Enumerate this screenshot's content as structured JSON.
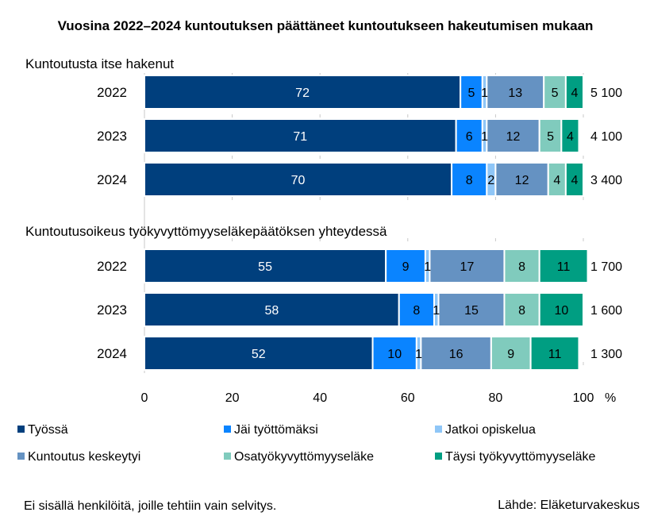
{
  "chart_data": {
    "type": "bar",
    "orientation": "horizontal",
    "stacked": true,
    "title": "Vuosina 2022–2024 kuntoutuksen päättäneet kuntoutukseen hakeutumisen mukaan",
    "xlabel": "%",
    "ylabel": "",
    "xlim": [
      0,
      100
    ],
    "x_ticks": [
      "0",
      "20",
      "40",
      "60",
      "80",
      "100"
    ],
    "x_unit": "%",
    "grid": "vertical dashed",
    "legend_position": "bottom",
    "series_names": [
      "Työssä",
      "Jäi työttömäksi",
      "Jatkoi opiskelua",
      "Kuntoutus keskeytyi",
      "Osatyökyvyttömyyseläke",
      "Täysi työkyvyttömyyseläke"
    ],
    "colors": [
      "#003f7d",
      "#0a84ff",
      "#8fc6f7",
      "#6592c2",
      "#80cbbd",
      "#009e82"
    ],
    "groups": [
      {
        "label": "Kuntoutusta itse hakenut",
        "categories": [
          "2022",
          "2023",
          "2024"
        ],
        "series": [
          {
            "name": "Työssä",
            "values": [
              72,
              71,
              70
            ]
          },
          {
            "name": "Jäi työttömäksi",
            "values": [
              5,
              6,
              8
            ]
          },
          {
            "name": "Jatkoi opiskelua",
            "values": [
              1,
              1,
              2
            ]
          },
          {
            "name": "Kuntoutus keskeytyi",
            "values": [
              13,
              12,
              12
            ]
          },
          {
            "name": "Osatyökyvyttömyyseläke",
            "values": [
              5,
              5,
              4
            ]
          },
          {
            "name": "Täysi työkyvyttömyyseläke",
            "values": [
              4,
              4,
              4
            ]
          }
        ],
        "totals": [
          "5 100",
          "4 100",
          "3 400"
        ]
      },
      {
        "label": "Kuntoutusoikeus työkyvyttömyyseläkepäätöksen yhteydessä",
        "categories": [
          "2022",
          "2023",
          "2024"
        ],
        "series": [
          {
            "name": "Työssä",
            "values": [
              55,
              58,
              52
            ]
          },
          {
            "name": "Jäi työttömäksi",
            "values": [
              9,
              8,
              10
            ]
          },
          {
            "name": "Jatkoi opiskelua",
            "values": [
              1,
              1,
              1
            ]
          },
          {
            "name": "Kuntoutus keskeytyi",
            "values": [
              17,
              15,
              16
            ]
          },
          {
            "name": "Osatyökyvyttömyyseläke",
            "values": [
              8,
              8,
              9
            ]
          },
          {
            "name": "Täysi työkyvyttömyyseläke",
            "values": [
              11,
              10,
              11
            ]
          }
        ],
        "totals": [
          "1 700",
          "1 600",
          "1 300"
        ]
      }
    ]
  },
  "footnote": "Ei sisällä henkilöitä, joille tehtiin vain selvitys.",
  "source": "Lähde: Eläketurvakeskus"
}
